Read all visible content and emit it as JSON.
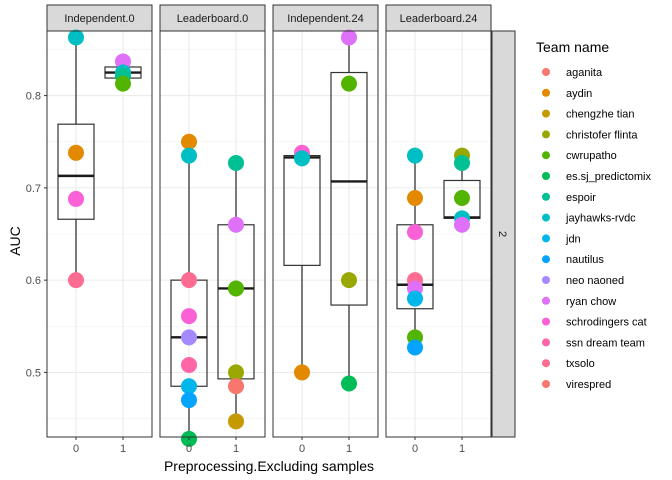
{
  "chart_data": {
    "type": "scatter",
    "xlabel": "Preprocessing.Excluding samples",
    "ylabel": "AUC",
    "ylim": [
      0.43,
      0.87
    ],
    "y_ticks": [
      0.5,
      0.6,
      0.7,
      0.8
    ],
    "y_tick_labels": [
      "0.5",
      "0.6",
      "0.7",
      "0.8"
    ],
    "x_categories": [
      "0",
      "1"
    ],
    "row_strip": "2",
    "legend_title": "Team name",
    "legend_position": "right",
    "grid": true,
    "teams": [
      {
        "name": "aganita",
        "color": "#F8766D"
      },
      {
        "name": "aydin",
        "color": "#E38900"
      },
      {
        "name": "chengzhe tian",
        "color": "#C49A00"
      },
      {
        "name": "christofer flinta",
        "color": "#99A800"
      },
      {
        "name": "cwrupatho",
        "color": "#53B400"
      },
      {
        "name": "es.sj_predictomix",
        "color": "#00BC56"
      },
      {
        "name": "espoir",
        "color": "#00C094"
      },
      {
        "name": "jayhawks-rvdc",
        "color": "#00BFC4"
      },
      {
        "name": "jdn",
        "color": "#00B6EB"
      },
      {
        "name": "nautilus",
        "color": "#06A4FF"
      },
      {
        "name": "neo naoned",
        "color": "#A58AFF"
      },
      {
        "name": "ryan chow",
        "color": "#DF70F8"
      },
      {
        "name": "schrodingers cat",
        "color": "#FB61D7"
      },
      {
        "name": "ssn dream team",
        "color": "#FF66A8"
      },
      {
        "name": "txsolo",
        "color": "#FF6C91"
      },
      {
        "name": "virespred",
        "color": "#F8766D"
      }
    ],
    "facets": [
      {
        "title": "Independent.0",
        "boxes": [
          {
            "x": "0",
            "q1": 0.666,
            "median": 0.713,
            "q3": 0.769,
            "whisker_low": 0.6,
            "whisker_high": 0.863
          },
          {
            "x": "1",
            "q1": 0.819,
            "median": 0.825,
            "q3": 0.831,
            "whisker_low": 0.813,
            "whisker_high": 0.837
          }
        ],
        "points": [
          {
            "x": "0",
            "y": 0.863,
            "color": "#00BFC4"
          },
          {
            "x": "0",
            "y": 0.738,
            "color": "#E38900"
          },
          {
            "x": "0",
            "y": 0.688,
            "color": "#FB61D7"
          },
          {
            "x": "0",
            "y": 0.6,
            "color": "#FF6C91"
          },
          {
            "x": "1",
            "y": 0.837,
            "color": "#DF70F8"
          },
          {
            "x": "1",
            "y": 0.825,
            "color": "#00BFC4"
          },
          {
            "x": "1",
            "y": 0.821,
            "color": "#00C094"
          },
          {
            "x": "1",
            "y": 0.813,
            "color": "#53B400"
          }
        ]
      },
      {
        "title": "Leaderboard.0",
        "boxes": [
          {
            "x": "0",
            "q1": 0.485,
            "median": 0.538,
            "q3": 0.6,
            "whisker_low": 0.428,
            "whisker_high": 0.75
          },
          {
            "x": "1",
            "q1": 0.493,
            "median": 0.591,
            "q3": 0.66,
            "whisker_low": 0.447,
            "whisker_high": 0.727
          }
        ],
        "points": [
          {
            "x": "0",
            "y": 0.75,
            "color": "#E38900"
          },
          {
            "x": "0",
            "y": 0.735,
            "color": "#00BFC4"
          },
          {
            "x": "0",
            "y": 0.6,
            "color": "#FF6C91"
          },
          {
            "x": "0",
            "y": 0.561,
            "color": "#FB61D7"
          },
          {
            "x": "0",
            "y": 0.538,
            "color": "#A58AFF"
          },
          {
            "x": "0",
            "y": 0.508,
            "color": "#FF66A8"
          },
          {
            "x": "0",
            "y": 0.485,
            "color": "#00B6EB"
          },
          {
            "x": "0",
            "y": 0.47,
            "color": "#06A4FF"
          },
          {
            "x": "0",
            "y": 0.428,
            "color": "#00BC56"
          },
          {
            "x": "1",
            "y": 0.727,
            "color": "#00C094"
          },
          {
            "x": "1",
            "y": 0.66,
            "color": "#DF70F8"
          },
          {
            "x": "1",
            "y": 0.591,
            "color": "#53B400"
          },
          {
            "x": "1",
            "y": 0.5,
            "color": "#99A800"
          },
          {
            "x": "1",
            "y": 0.485,
            "color": "#F8766D"
          },
          {
            "x": "1",
            "y": 0.447,
            "color": "#C49A00"
          }
        ]
      },
      {
        "title": "Independent.24",
        "boxes": [
          {
            "x": "0",
            "q1": 0.616,
            "median": 0.733,
            "q3": 0.735,
            "whisker_low": 0.5,
            "whisker_high": 0.738
          },
          {
            "x": "1",
            "q1": 0.573,
            "median": 0.707,
            "q3": 0.825,
            "whisker_low": 0.488,
            "whisker_high": 0.863
          }
        ],
        "points": [
          {
            "x": "0",
            "y": 0.738,
            "color": "#FB61D7"
          },
          {
            "x": "0",
            "y": 0.732,
            "color": "#00BFC4"
          },
          {
            "x": "0",
            "y": 0.5,
            "color": "#E38900"
          },
          {
            "x": "1",
            "y": 0.863,
            "color": "#DF70F8"
          },
          {
            "x": "1",
            "y": 0.813,
            "color": "#53B400"
          },
          {
            "x": "1",
            "y": 0.6,
            "color": "#99A800"
          },
          {
            "x": "1",
            "y": 0.488,
            "color": "#00BC56"
          }
        ]
      },
      {
        "title": "Leaderboard.24",
        "boxes": [
          {
            "x": "0",
            "q1": 0.569,
            "median": 0.595,
            "q3": 0.66,
            "whisker_low": 0.527,
            "whisker_high": 0.735
          },
          {
            "x": "1",
            "q1": 0.667,
            "median": 0.668,
            "q3": 0.708,
            "whisker_low": 0.66,
            "whisker_high": 0.735
          }
        ],
        "points": [
          {
            "x": "0",
            "y": 0.735,
            "color": "#00BFC4"
          },
          {
            "x": "0",
            "y": 0.689,
            "color": "#E38900"
          },
          {
            "x": "0",
            "y": 0.652,
            "color": "#FB61D7"
          },
          {
            "x": "0",
            "y": 0.6,
            "color": "#FF6C91"
          },
          {
            "x": "0",
            "y": 0.591,
            "color": "#DF70F8"
          },
          {
            "x": "0",
            "y": 0.58,
            "color": "#00B6EB"
          },
          {
            "x": "0",
            "y": 0.538,
            "color": "#53B400"
          },
          {
            "x": "0",
            "y": 0.527,
            "color": "#06A4FF"
          },
          {
            "x": "1",
            "y": 0.735,
            "color": "#99A800"
          },
          {
            "x": "1",
            "y": 0.727,
            "color": "#00C094"
          },
          {
            "x": "1",
            "y": 0.689,
            "color": "#53B400"
          },
          {
            "x": "1",
            "y": 0.667,
            "color": "#00BFC4"
          },
          {
            "x": "1",
            "y": 0.66,
            "color": "#DF70F8"
          }
        ]
      }
    ]
  }
}
